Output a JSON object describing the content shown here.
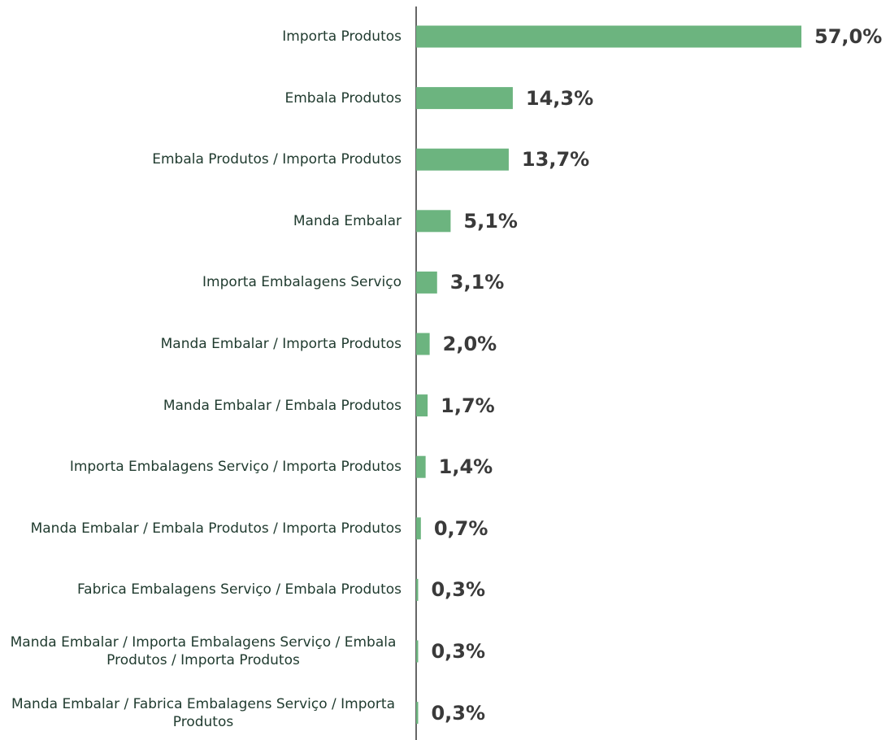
{
  "chart_data": {
    "type": "bar",
    "orientation": "horizontal",
    "color": "#6cb47f",
    "categories": [
      "Importa Produtos",
      "Embala Produtos",
      "Embala Produtos / Importa Produtos",
      "Manda Embalar",
      "Importa Embalagens Serviço",
      "Manda Embalar / Importa Produtos",
      "Manda Embalar / Embala Produtos",
      "Importa Embalagens Serviço / Importa Produtos",
      "Manda Embalar / Embala Produtos / Importa Produtos",
      "Fabrica Embalagens Serviço / Embala Produtos",
      "Manda Embalar / Importa Embalagens Serviço / Embala Produtos / Importa Produtos",
      "Manda Embalar / Fabrica Embalagens Serviço / Importa Produtos"
    ],
    "values": [
      57.0,
      14.3,
      13.7,
      5.1,
      3.1,
      2.0,
      1.7,
      1.4,
      0.7,
      0.3,
      0.3,
      0.3
    ],
    "value_labels": [
      "57,0%",
      "14,3%",
      "13,7%",
      "5,1%",
      "3,1%",
      "2,0%",
      "1,7%",
      "1,4%",
      "0,7%",
      "0,3%",
      "0,3%",
      "0,3%"
    ]
  }
}
